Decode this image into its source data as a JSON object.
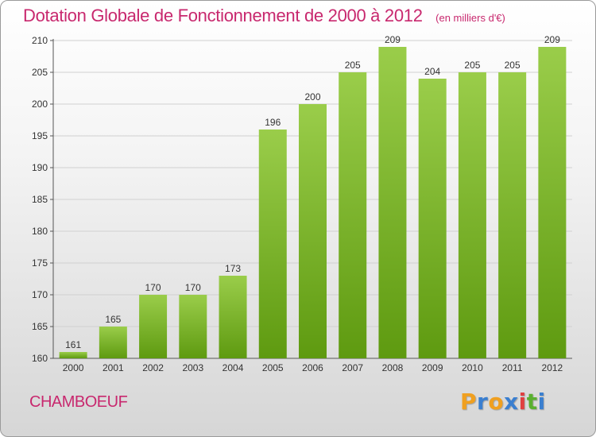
{
  "chart_data": {
    "type": "bar",
    "title": "Dotation Globale de Fonctionnement de 2000 à 2012",
    "subtitle": "(en milliers d'€)",
    "categories": [
      "2000",
      "2001",
      "2002",
      "2003",
      "2004",
      "2005",
      "2006",
      "2007",
      "2008",
      "2009",
      "2010",
      "2011",
      "2012"
    ],
    "values": [
      161,
      165,
      170,
      170,
      173,
      196,
      200,
      205,
      209,
      204,
      205,
      205,
      209
    ],
    "ylim": [
      160,
      210
    ],
    "yticks": [
      160,
      165,
      170,
      175,
      180,
      185,
      190,
      195,
      200,
      205,
      210
    ],
    "grid": true,
    "colors": {
      "bar_top": "#9acd4a",
      "bar_bottom": "#5e9a10",
      "grid": "#d0d0d0"
    }
  },
  "commune": "CHAMBOEUF",
  "logo": {
    "letters": [
      "P",
      "r",
      "o",
      "x",
      "i",
      "t",
      "i"
    ],
    "colors": [
      "#f0a020",
      "#3a7fd0",
      "#f0a020",
      "#3a7fd0",
      "#e04040",
      "#5ab030",
      "#3a7fd0"
    ]
  }
}
